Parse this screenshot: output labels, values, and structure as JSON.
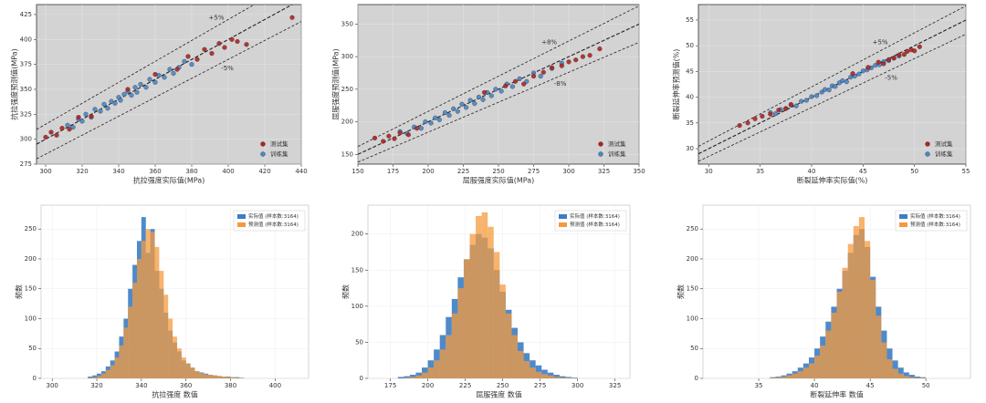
{
  "chart_data": [
    {
      "type": "scatter",
      "x_label": "抗拉强度实际值(MPa)",
      "y_label": "抗拉强度预测值(MPa)",
      "xlim": [
        295,
        440
      ],
      "ylim": [
        275,
        435
      ],
      "xticks": [
        300,
        320,
        340,
        360,
        380,
        400,
        420,
        440
      ],
      "yticks": [
        275,
        300,
        325,
        350,
        375,
        400,
        425
      ],
      "legend": "lower right",
      "reference_lines": [
        {
          "text": "+5%",
          "pct": 5
        },
        {
          "text": "-5%",
          "pct": -5
        }
      ],
      "series": [
        {
          "name": "测试集",
          "color": "#b22222",
          "x": [
            300,
            303,
            306,
            309,
            313,
            318,
            325,
            345,
            360,
            372,
            378,
            383,
            387,
            391,
            395,
            398,
            402,
            405,
            410,
            435
          ],
          "y": [
            302,
            307,
            304,
            311,
            310,
            322,
            323,
            350,
            365,
            370,
            383,
            380,
            390,
            386,
            396,
            392,
            400,
            398,
            395,
            422
          ]
        },
        {
          "name": "训练集",
          "color": "#4a86c8",
          "x": [
            312,
            315,
            318,
            320,
            322,
            325,
            327,
            330,
            332,
            334,
            336,
            338,
            340,
            341,
            343,
            345,
            347,
            349,
            350,
            352,
            355,
            357,
            360,
            362,
            365,
            368,
            370,
            373,
            376,
            380
          ],
          "y": [
            314,
            312,
            320,
            318,
            325,
            322,
            330,
            328,
            335,
            331,
            338,
            336,
            342,
            339,
            345,
            348,
            344,
            352,
            347,
            355,
            352,
            360,
            357,
            364,
            362,
            370,
            366,
            372,
            378,
            375
          ]
        }
      ]
    },
    {
      "type": "scatter",
      "x_label": "屈服强度实际值(MPa)",
      "y_label": "屈服强度预测值(MPa)",
      "xlim": [
        150,
        350
      ],
      "ylim": [
        135,
        380
      ],
      "xticks": [
        150,
        175,
        200,
        225,
        250,
        275,
        300,
        325,
        350
      ],
      "yticks": [
        150,
        200,
        250,
        300,
        350
      ],
      "legend": "lower right",
      "reference_lines": [
        {
          "text": "+8%",
          "pct": 8
        },
        {
          "text": "-8%",
          "pct": -8
        }
      ],
      "series": [
        {
          "name": "测试集",
          "color": "#b22222",
          "x": [
            162,
            168,
            172,
            176,
            180,
            186,
            192,
            240,
            255,
            262,
            268,
            275,
            282,
            288,
            295,
            300,
            305,
            310,
            315,
            322
          ],
          "y": [
            175,
            170,
            178,
            174,
            183,
            180,
            190,
            245,
            255,
            262,
            258,
            270,
            276,
            283,
            286,
            292,
            295,
            300,
            302,
            312
          ]
        },
        {
          "name": "训练集",
          "color": "#4a86c8",
          "x": [
            180,
            185,
            190,
            195,
            198,
            202,
            205,
            208,
            212,
            215,
            218,
            221,
            224,
            227,
            230,
            233,
            236,
            239,
            242,
            245,
            248,
            252,
            256,
            260,
            265,
            270,
            275,
            280,
            288,
            295
          ],
          "y": [
            185,
            182,
            192,
            190,
            200,
            198,
            206,
            203,
            214,
            210,
            220,
            216,
            227,
            222,
            233,
            228,
            238,
            234,
            245,
            240,
            250,
            247,
            258,
            254,
            266,
            262,
            275,
            270,
            282,
            290
          ]
        }
      ]
    },
    {
      "type": "scatter",
      "x_label": "断裂延伸率实际值(%)",
      "y_label": "断裂延伸率预测值(%)",
      "xlim": [
        29,
        55
      ],
      "ylim": [
        27,
        58
      ],
      "xticks": [
        30,
        35,
        40,
        45,
        50,
        55
      ],
      "yticks": [
        30,
        35,
        40,
        45,
        50,
        55
      ],
      "legend": "lower right",
      "reference_lines": [
        {
          "text": "+5%",
          "pct": 5
        },
        {
          "text": "-5%",
          "pct": -5
        }
      ],
      "series": [
        {
          "name": "测试集",
          "color": "#b22222",
          "x": [
            33,
            33.8,
            34.5,
            35.2,
            36,
            36.8,
            37.5,
            38,
            44,
            45.5,
            46.5,
            47,
            47.5,
            48,
            48.5,
            49,
            49.3,
            49.7,
            50,
            50.5
          ],
          "y": [
            34.5,
            35,
            35.8,
            36.3,
            36.7,
            37.5,
            37.8,
            38.6,
            44.6,
            45.8,
            46.8,
            46.5,
            47.3,
            47.6,
            48.2,
            48.3,
            48.9,
            49.2,
            49,
            49.8
          ]
        },
        {
          "name": "训练集",
          "color": "#4a86c8",
          "x": [
            36,
            36.5,
            37,
            37.5,
            38,
            38.5,
            39,
            39.5,
            40,
            40.5,
            41,
            41.3,
            41.7,
            42,
            42.3,
            42.7,
            43,
            43.4,
            43.8,
            44.2,
            44.6,
            45,
            45.4,
            45.8,
            46.2,
            46.6,
            47,
            47.5,
            48,
            48.5
          ],
          "y": [
            37,
            36.8,
            37.6,
            37.8,
            38.5,
            38.3,
            39.2,
            39.4,
            40.1,
            40.3,
            41,
            41.5,
            41.4,
            42.2,
            42.1,
            42.8,
            43.2,
            43,
            43.9,
            44.1,
            44.5,
            45.1,
            45.3,
            45.7,
            46.2,
            46.3,
            46.9,
            47.1,
            47.6,
            48
          ]
        }
      ]
    },
    {
      "type": "histogram",
      "x_label": "抗拉强度 数值",
      "y_label": "频数",
      "xlim": [
        295,
        415
      ],
      "ylim": [
        0,
        290
      ],
      "xticks": [
        300,
        320,
        340,
        360,
        380,
        400
      ],
      "yticks": [
        0,
        50,
        100,
        150,
        200,
        250
      ],
      "grid": true,
      "legend": "upper right",
      "bins": [
        316,
        318,
        320,
        322,
        324,
        326,
        328,
        330,
        332,
        334,
        336,
        338,
        340,
        342,
        344,
        346,
        348,
        350,
        352,
        354,
        356,
        358,
        360,
        362,
        364,
        366,
        368,
        370,
        372,
        374,
        376,
        378,
        380,
        382,
        384,
        386
      ],
      "series": [
        {
          "name": "实际值 (样本数:3164)",
          "color": "#3b7dc4",
          "values": [
            3,
            5,
            8,
            12,
            20,
            30,
            45,
            70,
            100,
            150,
            190,
            230,
            270,
            210,
            250,
            180,
            150,
            110,
            80,
            60,
            45,
            30,
            25,
            18,
            12,
            10,
            8,
            6,
            5,
            4,
            3,
            3,
            2,
            2,
            1
          ]
        },
        {
          "name": "预测值 (样本数:3164)",
          "color": "#f59a3c",
          "values": [
            1,
            2,
            4,
            8,
            14,
            22,
            35,
            55,
            85,
            120,
            160,
            200,
            230,
            250,
            245,
            220,
            180,
            140,
            100,
            70,
            50,
            35,
            25,
            18,
            12,
            9,
            7,
            6,
            5,
            4,
            3,
            2,
            2,
            1,
            1
          ]
        }
      ]
    },
    {
      "type": "histogram",
      "x_label": "屈服强度 数值",
      "y_label": "频数",
      "xlim": [
        160,
        335
      ],
      "ylim": [
        0,
        240
      ],
      "xticks": [
        175,
        200,
        225,
        250,
        275,
        300,
        325
      ],
      "yticks": [
        0,
        50,
        100,
        150,
        200
      ],
      "grid": true,
      "legend": "upper right",
      "bins": [
        180,
        184,
        188,
        192,
        196,
        200,
        204,
        208,
        212,
        216,
        220,
        224,
        228,
        232,
        236,
        240,
        244,
        248,
        252,
        256,
        260,
        264,
        268,
        272,
        276,
        280,
        284,
        288,
        292,
        296,
        300
      ],
      "series": [
        {
          "name": "实际值 (样本数:3164)",
          "color": "#3b7dc4",
          "values": [
            2,
            3,
            5,
            8,
            15,
            25,
            40,
            60,
            85,
            110,
            140,
            165,
            185,
            200,
            195,
            180,
            150,
            120,
            95,
            70,
            50,
            35,
            25,
            18,
            12,
            8,
            5,
            3,
            2,
            1
          ]
        },
        {
          "name": "预测值 (样本数:3164)",
          "color": "#f59a3c",
          "values": [
            0,
            1,
            2,
            4,
            8,
            15,
            25,
            40,
            60,
            90,
            125,
            165,
            200,
            225,
            230,
            210,
            175,
            130,
            90,
            60,
            38,
            24,
            15,
            9,
            6,
            4,
            2,
            1,
            1,
            0
          ]
        }
      ]
    },
    {
      "type": "histogram",
      "x_label": "断裂延伸率 数值",
      "y_label": "频数",
      "xlim": [
        30,
        54
      ],
      "ylim": [
        0,
        290
      ],
      "xticks": [
        35,
        40,
        45,
        50
      ],
      "yticks": [
        0,
        50,
        100,
        150,
        200,
        250
      ],
      "grid": true,
      "legend": "upper right",
      "bins": [
        36,
        36.5,
        37,
        37.5,
        38,
        38.5,
        39,
        39.5,
        40,
        40.5,
        41,
        41.5,
        42,
        42.5,
        43,
        43.5,
        44,
        44.5,
        45,
        45.5,
        46,
        46.5,
        47,
        47.5,
        48,
        48.5,
        49,
        49.5,
        50
      ],
      "series": [
        {
          "name": "实际值 (样本数:3164)",
          "color": "#3b7dc4",
          "values": [
            2,
            3,
            5,
            8,
            12,
            18,
            25,
            35,
            50,
            70,
            95,
            120,
            150,
            180,
            210,
            240,
            250,
            220,
            170,
            120,
            80,
            50,
            30,
            18,
            10,
            6,
            3,
            2
          ]
        },
        {
          "name": "预测值 (样本数:3164)",
          "color": "#f59a3c",
          "values": [
            1,
            2,
            3,
            5,
            8,
            12,
            18,
            25,
            38,
            55,
            80,
            110,
            145,
            185,
            225,
            255,
            270,
            230,
            165,
            105,
            60,
            32,
            16,
            8,
            4,
            2,
            1,
            1
          ]
        }
      ]
    }
  ]
}
